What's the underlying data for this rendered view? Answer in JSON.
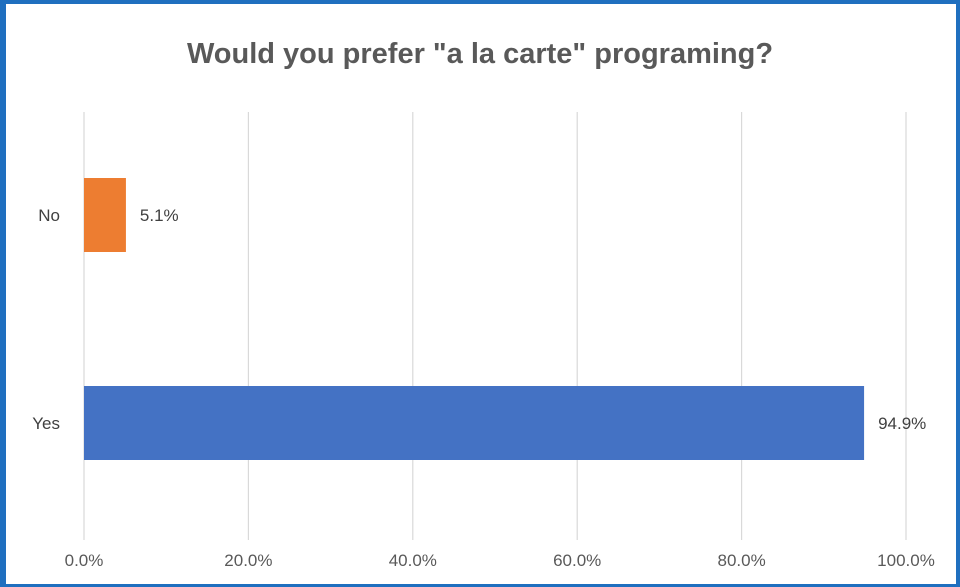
{
  "chart_data": {
    "type": "bar",
    "orientation": "horizontal",
    "title": "Would you prefer \"a la carte\" programing?",
    "categories": [
      "No",
      "Yes"
    ],
    "values": [
      5.1,
      94.9
    ],
    "data_labels": [
      "5.1%",
      "94.9%"
    ],
    "colors": [
      "#ed7d31",
      "#4472c4"
    ],
    "xlim": [
      0,
      100
    ],
    "x_ticks": [
      0,
      20,
      40,
      60,
      80,
      100
    ],
    "x_tick_labels": [
      "0.0%",
      "20.0%",
      "40.0%",
      "60.0%",
      "80.0%",
      "100.0%"
    ],
    "grid": true,
    "legend": "none",
    "xlabel": "",
    "ylabel": ""
  },
  "frame_color": "#1f6fbf"
}
